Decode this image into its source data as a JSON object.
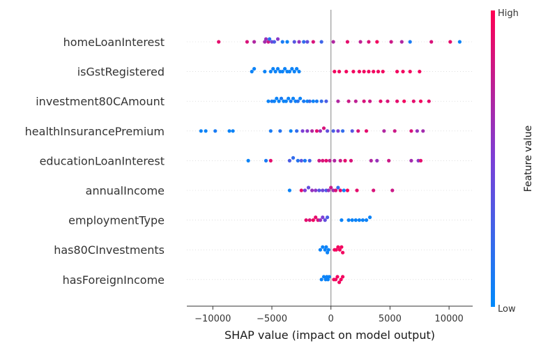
{
  "chart_data": {
    "type": "scatter",
    "subtype": "shap-beeswarm",
    "title": "",
    "xlabel": "SHAP value (impact on model output)",
    "ylabel": "",
    "xlim": [
      -12200,
      12000
    ],
    "xticks": [
      -10000,
      -5000,
      0,
      5000,
      10000
    ],
    "xtick_labels": [
      "−10000",
      "−5000",
      "0",
      "5000",
      "10000"
    ],
    "grid": false,
    "colorbar": {
      "title": "Feature value",
      "high_label": "High",
      "low_label": "Low",
      "low_color": "#008afb",
      "mid_color": "#7c3fd6",
      "high_color": "#ff0052"
    },
    "features": [
      {
        "name": "homeLoanInterest",
        "points": [
          {
            "x": -9500,
            "v": 0.9
          },
          {
            "x": -7100,
            "v": 0.85
          },
          {
            "x": -6500,
            "v": 0.7
          },
          {
            "x": -5600,
            "v": 0.65
          },
          {
            "x": -5500,
            "v": 0.6
          },
          {
            "x": -5300,
            "v": 0.8
          },
          {
            "x": -5200,
            "v": 0.15
          },
          {
            "x": -5000,
            "v": 0.45
          },
          {
            "x": -4800,
            "v": 0.3
          },
          {
            "x": -4500,
            "v": 0.55
          },
          {
            "x": -4100,
            "v": 0.1
          },
          {
            "x": -3700,
            "v": 0.05
          },
          {
            "x": -3100,
            "v": 0.35
          },
          {
            "x": -2700,
            "v": 0.6
          },
          {
            "x": -2300,
            "v": 0.2
          },
          {
            "x": -2000,
            "v": 0.4
          },
          {
            "x": -1500,
            "v": 0.85
          },
          {
            "x": -800,
            "v": 0.25
          },
          {
            "x": 200,
            "v": 0.7
          },
          {
            "x": 1400,
            "v": 0.9
          },
          {
            "x": 2500,
            "v": 0.75
          },
          {
            "x": 3200,
            "v": 0.85
          },
          {
            "x": 3900,
            "v": 0.95
          },
          {
            "x": 5100,
            "v": 0.8
          },
          {
            "x": 6000,
            "v": 0.7
          },
          {
            "x": 6700,
            "v": 0.1
          },
          {
            "x": 8500,
            "v": 0.85
          },
          {
            "x": 10100,
            "v": 0.9
          },
          {
            "x": 10900,
            "v": 0.05
          }
        ]
      },
      {
        "name": "isGstRegistered",
        "points": [
          {
            "x": -6700,
            "v": 0.05
          },
          {
            "x": -6500,
            "v": 0.05
          },
          {
            "x": -5600,
            "v": 0.05
          },
          {
            "x": -5100,
            "v": 0.05
          },
          {
            "x": -4900,
            "v": 0.05
          },
          {
            "x": -4700,
            "v": 0.05
          },
          {
            "x": -4500,
            "v": 0.05
          },
          {
            "x": -4300,
            "v": 0.05
          },
          {
            "x": -4100,
            "v": 0.05
          },
          {
            "x": -3900,
            "v": 0.05
          },
          {
            "x": -3700,
            "v": 0.05
          },
          {
            "x": -3500,
            "v": 0.05
          },
          {
            "x": -3300,
            "v": 0.05
          },
          {
            "x": -3100,
            "v": 0.05
          },
          {
            "x": -2900,
            "v": 0.05
          },
          {
            "x": -2700,
            "v": 0.05
          },
          {
            "x": 300,
            "v": 0.95
          },
          {
            "x": 700,
            "v": 0.95
          },
          {
            "x": 1300,
            "v": 0.95
          },
          {
            "x": 1900,
            "v": 0.95
          },
          {
            "x": 2400,
            "v": 0.95
          },
          {
            "x": 2800,
            "v": 0.95
          },
          {
            "x": 3200,
            "v": 0.95
          },
          {
            "x": 3600,
            "v": 0.95
          },
          {
            "x": 4000,
            "v": 0.95
          },
          {
            "x": 4400,
            "v": 0.95
          },
          {
            "x": 5600,
            "v": 0.95
          },
          {
            "x": 6100,
            "v": 0.95
          },
          {
            "x": 6700,
            "v": 0.95
          },
          {
            "x": 7500,
            "v": 0.95
          }
        ]
      },
      {
        "name": "investment80CAmount",
        "points": [
          {
            "x": -5300,
            "v": 0.05
          },
          {
            "x": -5000,
            "v": 0.1
          },
          {
            "x": -4800,
            "v": 0.05
          },
          {
            "x": -4600,
            "v": 0.05
          },
          {
            "x": -4400,
            "v": 0.05
          },
          {
            "x": -4200,
            "v": 0.1
          },
          {
            "x": -4000,
            "v": 0.05
          },
          {
            "x": -3800,
            "v": 0.05
          },
          {
            "x": -3600,
            "v": 0.05
          },
          {
            "x": -3400,
            "v": 0.1
          },
          {
            "x": -3200,
            "v": 0.05
          },
          {
            "x": -3000,
            "v": 0.05
          },
          {
            "x": -2800,
            "v": 0.15
          },
          {
            "x": -2600,
            "v": 0.05
          },
          {
            "x": -2300,
            "v": 0.1
          },
          {
            "x": -2000,
            "v": 0.05
          },
          {
            "x": -1800,
            "v": 0.2
          },
          {
            "x": -1500,
            "v": 0.05
          },
          {
            "x": -1200,
            "v": 0.1
          },
          {
            "x": -800,
            "v": 0.2
          },
          {
            "x": -400,
            "v": 0.3
          },
          {
            "x": 600,
            "v": 0.7
          },
          {
            "x": 1500,
            "v": 0.8
          },
          {
            "x": 2100,
            "v": 0.75
          },
          {
            "x": 2800,
            "v": 0.85
          },
          {
            "x": 3300,
            "v": 0.8
          },
          {
            "x": 4200,
            "v": 0.9
          },
          {
            "x": 4800,
            "v": 0.85
          },
          {
            "x": 5600,
            "v": 0.9
          },
          {
            "x": 6200,
            "v": 0.95
          },
          {
            "x": 7000,
            "v": 0.9
          },
          {
            "x": 7600,
            "v": 0.95
          },
          {
            "x": 8300,
            "v": 0.9
          }
        ]
      },
      {
        "name": "healthInsurancePremium",
        "points": [
          {
            "x": -11000,
            "v": 0.05
          },
          {
            "x": -10600,
            "v": 0.05
          },
          {
            "x": -9800,
            "v": 0.1
          },
          {
            "x": -8600,
            "v": 0.05
          },
          {
            "x": -8300,
            "v": 0.05
          },
          {
            "x": -5100,
            "v": 0.1
          },
          {
            "x": -4300,
            "v": 0.15
          },
          {
            "x": -3400,
            "v": 0.05
          },
          {
            "x": -2900,
            "v": 0.2
          },
          {
            "x": -2400,
            "v": 0.5
          },
          {
            "x": -2000,
            "v": 0.55
          },
          {
            "x": -1600,
            "v": 0.7
          },
          {
            "x": -1200,
            "v": 0.9
          },
          {
            "x": -900,
            "v": 0.6
          },
          {
            "x": -600,
            "v": 0.85
          },
          {
            "x": -300,
            "v": 0.4
          },
          {
            "x": 200,
            "v": 0.3
          },
          {
            "x": 600,
            "v": 0.5
          },
          {
            "x": 1000,
            "v": 0.2
          },
          {
            "x": 1800,
            "v": 0.35
          },
          {
            "x": 2300,
            "v": 0.85
          },
          {
            "x": 3000,
            "v": 0.9
          },
          {
            "x": 4500,
            "v": 0.7
          },
          {
            "x": 5400,
            "v": 0.8
          },
          {
            "x": 6800,
            "v": 0.85
          },
          {
            "x": 7300,
            "v": 0.6
          },
          {
            "x": 7800,
            "v": 0.65
          }
        ]
      },
      {
        "name": "educationLoanInterest",
        "points": [
          {
            "x": -7000,
            "v": 0.05
          },
          {
            "x": -5500,
            "v": 0.1
          },
          {
            "x": -5100,
            "v": 0.9
          },
          {
            "x": -3500,
            "v": 0.3
          },
          {
            "x": -3200,
            "v": 0.2
          },
          {
            "x": -2800,
            "v": 0.15
          },
          {
            "x": -2500,
            "v": 0.35
          },
          {
            "x": -2200,
            "v": 0.1
          },
          {
            "x": -1800,
            "v": 0.25
          },
          {
            "x": -1000,
            "v": 0.8
          },
          {
            "x": -700,
            "v": 0.85
          },
          {
            "x": -400,
            "v": 0.9
          },
          {
            "x": -100,
            "v": 0.75
          },
          {
            "x": 300,
            "v": 0.7
          },
          {
            "x": 800,
            "v": 0.8
          },
          {
            "x": 1200,
            "v": 0.9
          },
          {
            "x": 1700,
            "v": 0.85
          },
          {
            "x": 3400,
            "v": 0.7
          },
          {
            "x": 3900,
            "v": 0.6
          },
          {
            "x": 4900,
            "v": 0.8
          },
          {
            "x": 6800,
            "v": 0.65
          },
          {
            "x": 7400,
            "v": 0.55
          },
          {
            "x": 7600,
            "v": 0.9
          }
        ]
      },
      {
        "name": "annualIncome",
        "points": [
          {
            "x": -3500,
            "v": 0.05
          },
          {
            "x": -2500,
            "v": 0.9
          },
          {
            "x": -2200,
            "v": 0.5
          },
          {
            "x": -1900,
            "v": 0.4
          },
          {
            "x": -1600,
            "v": 0.6
          },
          {
            "x": -1300,
            "v": 0.55
          },
          {
            "x": -1000,
            "v": 0.35
          },
          {
            "x": -700,
            "v": 0.45
          },
          {
            "x": -400,
            "v": 0.3
          },
          {
            "x": -200,
            "v": 0.6
          },
          {
            "x": 0,
            "v": 0.8
          },
          {
            "x": 200,
            "v": 0.65
          },
          {
            "x": 400,
            "v": 0.85
          },
          {
            "x": 600,
            "v": 0.2
          },
          {
            "x": 800,
            "v": 0.9
          },
          {
            "x": 1100,
            "v": 0.05
          },
          {
            "x": 1400,
            "v": 0.95
          },
          {
            "x": 2200,
            "v": 0.9
          },
          {
            "x": 3600,
            "v": 0.85
          },
          {
            "x": 5200,
            "v": 0.8
          }
        ]
      },
      {
        "name": "employmentType",
        "points": [
          {
            "x": -2100,
            "v": 0.9
          },
          {
            "x": -1800,
            "v": 0.85
          },
          {
            "x": -1500,
            "v": 0.95
          },
          {
            "x": -1300,
            "v": 0.9
          },
          {
            "x": -1100,
            "v": 0.85
          },
          {
            "x": -900,
            "v": 0.6
          },
          {
            "x": -700,
            "v": 0.5
          },
          {
            "x": -500,
            "v": 0.4
          },
          {
            "x": -300,
            "v": 0.3
          },
          {
            "x": 900,
            "v": 0.05
          },
          {
            "x": 1500,
            "v": 0.05
          },
          {
            "x": 1800,
            "v": 0.05
          },
          {
            "x": 2100,
            "v": 0.05
          },
          {
            "x": 2400,
            "v": 0.05
          },
          {
            "x": 2700,
            "v": 0.05
          },
          {
            "x": 3000,
            "v": 0.05
          },
          {
            "x": 3300,
            "v": 0.05
          }
        ]
      },
      {
        "name": "has80CInvestments",
        "points": [
          {
            "x": -900,
            "v": 0.05
          },
          {
            "x": -700,
            "v": 0.05
          },
          {
            "x": -500,
            "v": 0.05
          },
          {
            "x": -400,
            "v": 0.05
          },
          {
            "x": -300,
            "v": 0.05
          },
          {
            "x": -200,
            "v": 0.05
          },
          {
            "x": 300,
            "v": 0.95
          },
          {
            "x": 450,
            "v": 0.95
          },
          {
            "x": 600,
            "v": 0.95
          },
          {
            "x": 750,
            "v": 0.95
          },
          {
            "x": 900,
            "v": 0.95
          },
          {
            "x": 1000,
            "v": 0.95
          }
        ]
      },
      {
        "name": "hasForeignIncome",
        "points": [
          {
            "x": -800,
            "v": 0.05
          },
          {
            "x": -600,
            "v": 0.05
          },
          {
            "x": -450,
            "v": 0.05
          },
          {
            "x": -350,
            "v": 0.05
          },
          {
            "x": -250,
            "v": 0.05
          },
          {
            "x": -150,
            "v": 0.05
          },
          {
            "x": 250,
            "v": 0.95
          },
          {
            "x": 400,
            "v": 0.95
          },
          {
            "x": 550,
            "v": 0.95
          },
          {
            "x": 700,
            "v": 0.95
          },
          {
            "x": 850,
            "v": 0.95
          },
          {
            "x": 1000,
            "v": 0.95
          }
        ]
      }
    ]
  }
}
